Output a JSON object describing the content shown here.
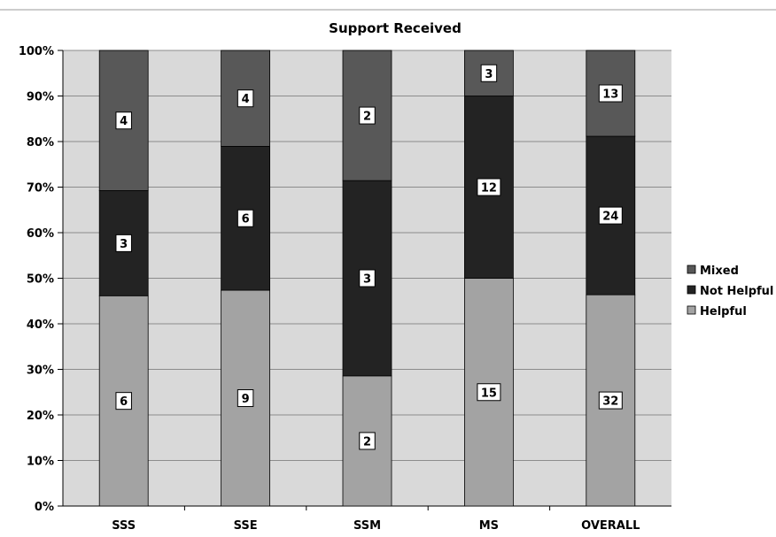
{
  "chart_data": {
    "type": "bar",
    "stacked": true,
    "title": "Support Received",
    "categories": [
      "SSS",
      "SSE",
      "SSM",
      "MS",
      "OVERALL"
    ],
    "series": [
      {
        "name": "Helpful",
        "values": [
          6,
          9,
          2,
          15,
          32
        ],
        "color": "#a3a3a3"
      },
      {
        "name": "Not Helpful",
        "values": [
          3,
          6,
          3,
          12,
          24
        ],
        "color": "#232323"
      },
      {
        "name": "Mixed",
        "values": [
          4,
          4,
          2,
          3,
          13
        ],
        "color": "#585858"
      }
    ],
    "yticks": [
      "0%",
      "10%",
      "20%",
      "30%",
      "40%",
      "50%",
      "60%",
      "70%",
      "80%",
      "90%",
      "100%"
    ],
    "ylim": [
      0,
      100
    ],
    "grid": true,
    "legend": "right",
    "plot_background": "#d9d9d9",
    "grid_color": "#8c8c8c"
  }
}
